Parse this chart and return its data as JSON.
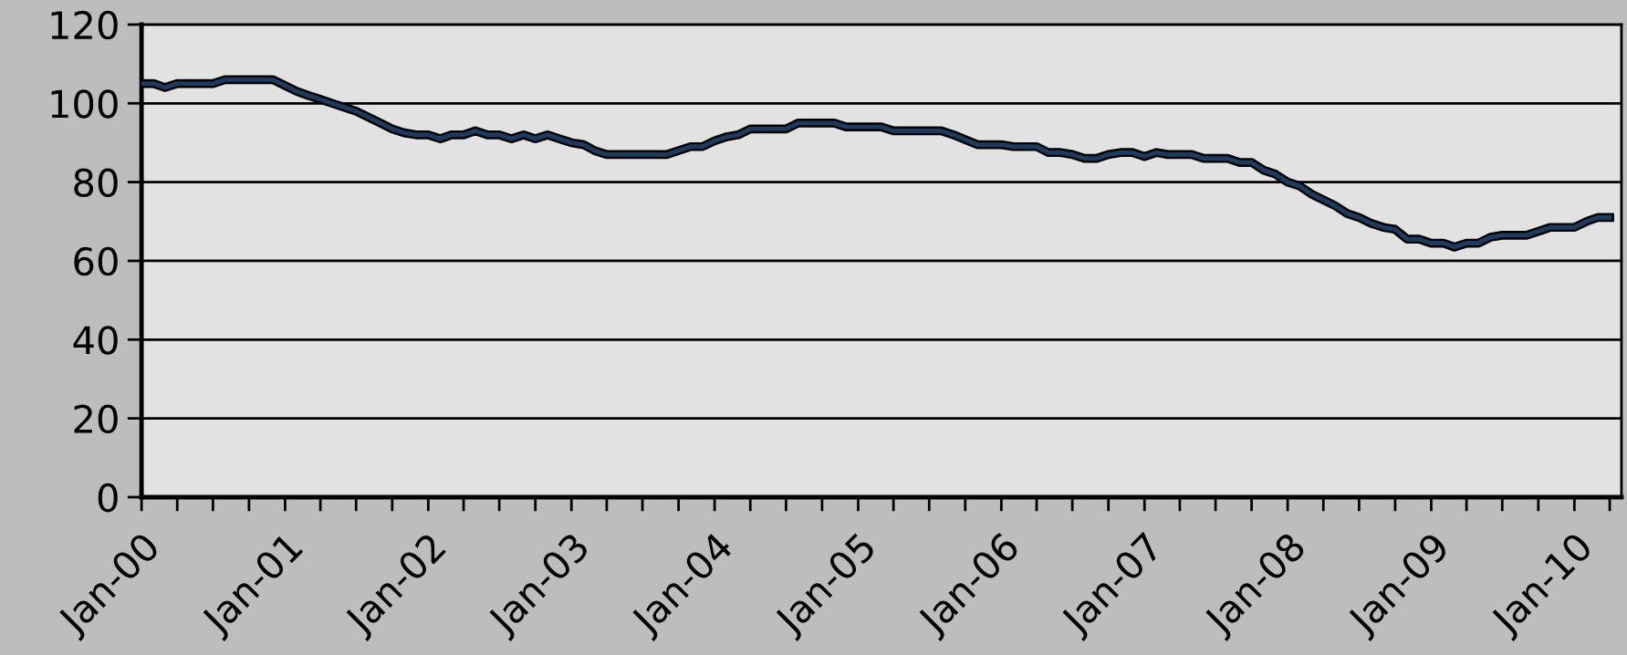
{
  "chart_data": {
    "type": "line",
    "line_style": "solid",
    "grid": "y",
    "x": [
      "2000-01",
      "2000-02",
      "2000-03",
      "2000-04",
      "2000-07",
      "2000-08",
      "2000-12",
      "2001-01",
      "2001-02",
      "2001-03",
      "2001-04",
      "2001-05",
      "2001-06",
      "2001-07",
      "2001-08",
      "2001-09",
      "2001-10",
      "2001-11",
      "2001-12",
      "2002-01",
      "2002-02",
      "2002-03",
      "2002-04",
      "2002-05",
      "2002-06",
      "2002-07",
      "2002-08",
      "2002-09",
      "2002-10",
      "2002-11",
      "2002-12",
      "2003-01",
      "2003-02",
      "2003-03",
      "2003-04",
      "2003-09",
      "2003-11",
      "2003-12",
      "2004-01",
      "2004-02",
      "2004-03",
      "2004-04",
      "2004-07",
      "2004-08",
      "2004-11",
      "2004-12",
      "2005-03",
      "2005-04",
      "2005-08",
      "2005-09",
      "2005-11",
      "2006-01",
      "2006-02",
      "2006-04",
      "2006-05",
      "2006-06",
      "2006-07",
      "2006-08",
      "2006-09",
      "2006-10",
      "2006-11",
      "2006-12",
      "2007-01",
      "2007-02",
      "2007-03",
      "2007-05",
      "2007-06",
      "2007-08",
      "2007-09",
      "2007-10",
      "2007-11",
      "2007-12",
      "2008-01",
      "2008-02",
      "2008-03",
      "2008-04",
      "2008-05",
      "2008-06",
      "2008-07",
      "2008-08",
      "2008-09",
      "2008-10",
      "2008-11",
      "2008-12",
      "2009-01",
      "2009-02",
      "2009-03",
      "2009-04",
      "2009-05",
      "2009-06",
      "2009-07",
      "2009-09",
      "2009-10",
      "2009-11",
      "2010-01",
      "2010-02",
      "2010-03",
      "2010-04"
    ],
    "series": [
      {
        "color": "#1f3a5f",
        "values": [
          105,
          105,
          104,
          105,
          105,
          106,
          106,
          104.5,
          103,
          102,
          101,
          100,
          99,
          98,
          96.5,
          95,
          93.5,
          92.5,
          92,
          92,
          91,
          92,
          92,
          93,
          92,
          92,
          91,
          92,
          91,
          92,
          91,
          90,
          89.5,
          88,
          87,
          87,
          89,
          89,
          90.5,
          91.5,
          92,
          93.5,
          93.5,
          95,
          95,
          94,
          94,
          93,
          93,
          92,
          89.5,
          89.5,
          89,
          89,
          87.5,
          87.5,
          87,
          86,
          86,
          87,
          87.5,
          87.5,
          86.5,
          87.5,
          87,
          87,
          86,
          86,
          85,
          85,
          83,
          82,
          80,
          79,
          77,
          75.5,
          74,
          72,
          71,
          69.5,
          68.5,
          68,
          65.5,
          65.5,
          64.5,
          64.5,
          63.5,
          64.5,
          64.5,
          66,
          66.5,
          66.5,
          67.5,
          68.5,
          68.5,
          70,
          71,
          71
        ]
      }
    ],
    "xlim": [
      "2000-01",
      "2010-05"
    ],
    "xticks": [
      {
        "value": "2000-01",
        "label": "Jan-00"
      },
      {
        "value": "2000-04",
        "label": null
      },
      {
        "value": "2000-07",
        "label": null
      },
      {
        "value": "2000-10",
        "label": null
      },
      {
        "value": "2001-01",
        "label": "Jan-01"
      },
      {
        "value": "2001-04",
        "label": null
      },
      {
        "value": "2001-07",
        "label": null
      },
      {
        "value": "2001-10",
        "label": null
      },
      {
        "value": "2002-01",
        "label": "Jan-02"
      },
      {
        "value": "2002-04",
        "label": null
      },
      {
        "value": "2002-07",
        "label": null
      },
      {
        "value": "2002-10",
        "label": null
      },
      {
        "value": "2003-01",
        "label": "Jan-03"
      },
      {
        "value": "2003-04",
        "label": null
      },
      {
        "value": "2003-07",
        "label": null
      },
      {
        "value": "2003-10",
        "label": null
      },
      {
        "value": "2004-01",
        "label": "Jan-04"
      },
      {
        "value": "2004-04",
        "label": null
      },
      {
        "value": "2004-07",
        "label": null
      },
      {
        "value": "2004-10",
        "label": null
      },
      {
        "value": "2005-01",
        "label": "Jan-05"
      },
      {
        "value": "2005-04",
        "label": null
      },
      {
        "value": "2005-07",
        "label": null
      },
      {
        "value": "2005-10",
        "label": null
      },
      {
        "value": "2006-01",
        "label": "Jan-06"
      },
      {
        "value": "2006-04",
        "label": null
      },
      {
        "value": "2006-07",
        "label": null
      },
      {
        "value": "2006-10",
        "label": null
      },
      {
        "value": "2007-01",
        "label": "Jan-07"
      },
      {
        "value": "2007-04",
        "label": null
      },
      {
        "value": "2007-07",
        "label": null
      },
      {
        "value": "2007-10",
        "label": null
      },
      {
        "value": "2008-01",
        "label": "Jan-08"
      },
      {
        "value": "2008-04",
        "label": null
      },
      {
        "value": "2008-07",
        "label": null
      },
      {
        "value": "2008-10",
        "label": null
      },
      {
        "value": "2009-01",
        "label": "Jan-09"
      },
      {
        "value": "2009-04",
        "label": null
      },
      {
        "value": "2009-07",
        "label": null
      },
      {
        "value": "2009-10",
        "label": null
      },
      {
        "value": "2010-01",
        "label": "Jan-10"
      },
      {
        "value": "2010-04",
        "label": null
      }
    ],
    "ylim": [
      0,
      120
    ],
    "yticks": [
      0,
      20,
      40,
      60,
      80,
      100,
      120
    ]
  }
}
